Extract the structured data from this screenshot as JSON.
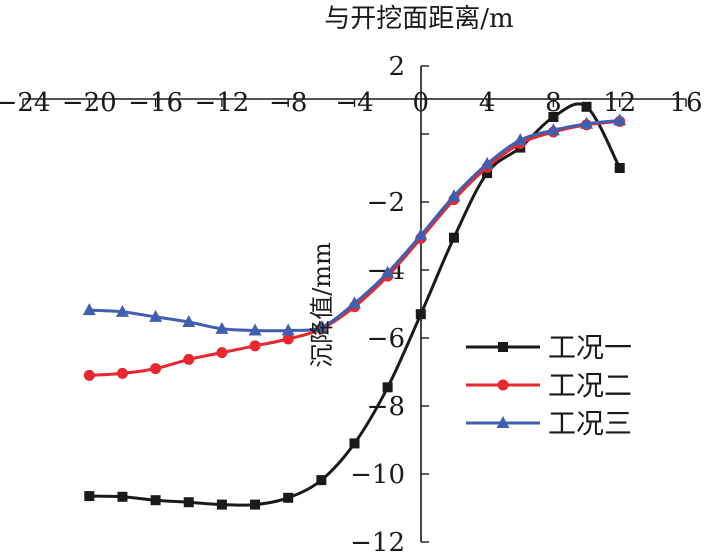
{
  "chart_data": {
    "type": "line",
    "title": "",
    "xlabel": "与开挖面距离/m",
    "ylabel": "沉降值/mm",
    "xlim": [
      -24,
      16
    ],
    "ylim": [
      -12,
      2
    ],
    "xticks": [
      -24,
      -20,
      -16,
      -12,
      -8,
      -4,
      0,
      4,
      8,
      12,
      16
    ],
    "yticks": [
      2,
      0,
      -2,
      -4,
      -6,
      -8,
      -10,
      -12
    ],
    "xtick_labels": [
      "−24",
      "−20",
      "−16",
      "−12",
      "−8",
      "−4",
      "0",
      "4",
      "8",
      "12",
      "16"
    ],
    "ytick_labels": [
      "2",
      "",
      "−2",
      "−4",
      "−6",
      "−8",
      "−10",
      "−12"
    ],
    "x_axis_position": "top",
    "grid": false,
    "legend_position": "right",
    "series": [
      {
        "name": "工况一",
        "color": "#1a1a1a",
        "marker": "square",
        "x": [
          -20,
          -18,
          -16,
          -14,
          -12,
          -10,
          -8,
          -6,
          -4,
          -2,
          0,
          2,
          4,
          6,
          8,
          10,
          12
        ],
        "y": [
          -10.65,
          -10.67,
          -10.77,
          -10.83,
          -10.9,
          -10.9,
          -10.7,
          -10.18,
          -9.1,
          -7.45,
          -5.3,
          -3.05,
          -1.15,
          -0.4,
          0.5,
          0.8,
          -1.0
        ]
      },
      {
        "name": "工况二",
        "color": "#e8272f",
        "marker": "circle",
        "x": [
          -20,
          -18,
          -16,
          -14,
          -12,
          -10,
          -8,
          -6,
          -4,
          -2,
          0,
          2,
          4,
          6,
          8,
          10,
          12
        ],
        "y": [
          -7.1,
          -7.04,
          -6.9,
          -6.63,
          -6.43,
          -6.23,
          -6.03,
          -5.73,
          -5.08,
          -4.18,
          -3.07,
          -1.93,
          -0.98,
          -0.28,
          0.06,
          0.27,
          0.37
        ]
      },
      {
        "name": "工况三",
        "color": "#3f5fb0",
        "marker": "triangle",
        "x": [
          -20,
          -18,
          -16,
          -14,
          -12,
          -10,
          -8,
          -6,
          -4,
          -2,
          0,
          2,
          4,
          6,
          8,
          10,
          12
        ],
        "y": [
          -5.18,
          -5.23,
          -5.38,
          -5.53,
          -5.73,
          -5.78,
          -5.78,
          -5.68,
          -4.98,
          -4.08,
          -2.98,
          -1.83,
          -0.88,
          -0.18,
          0.11,
          0.3,
          0.4
        ]
      }
    ]
  }
}
